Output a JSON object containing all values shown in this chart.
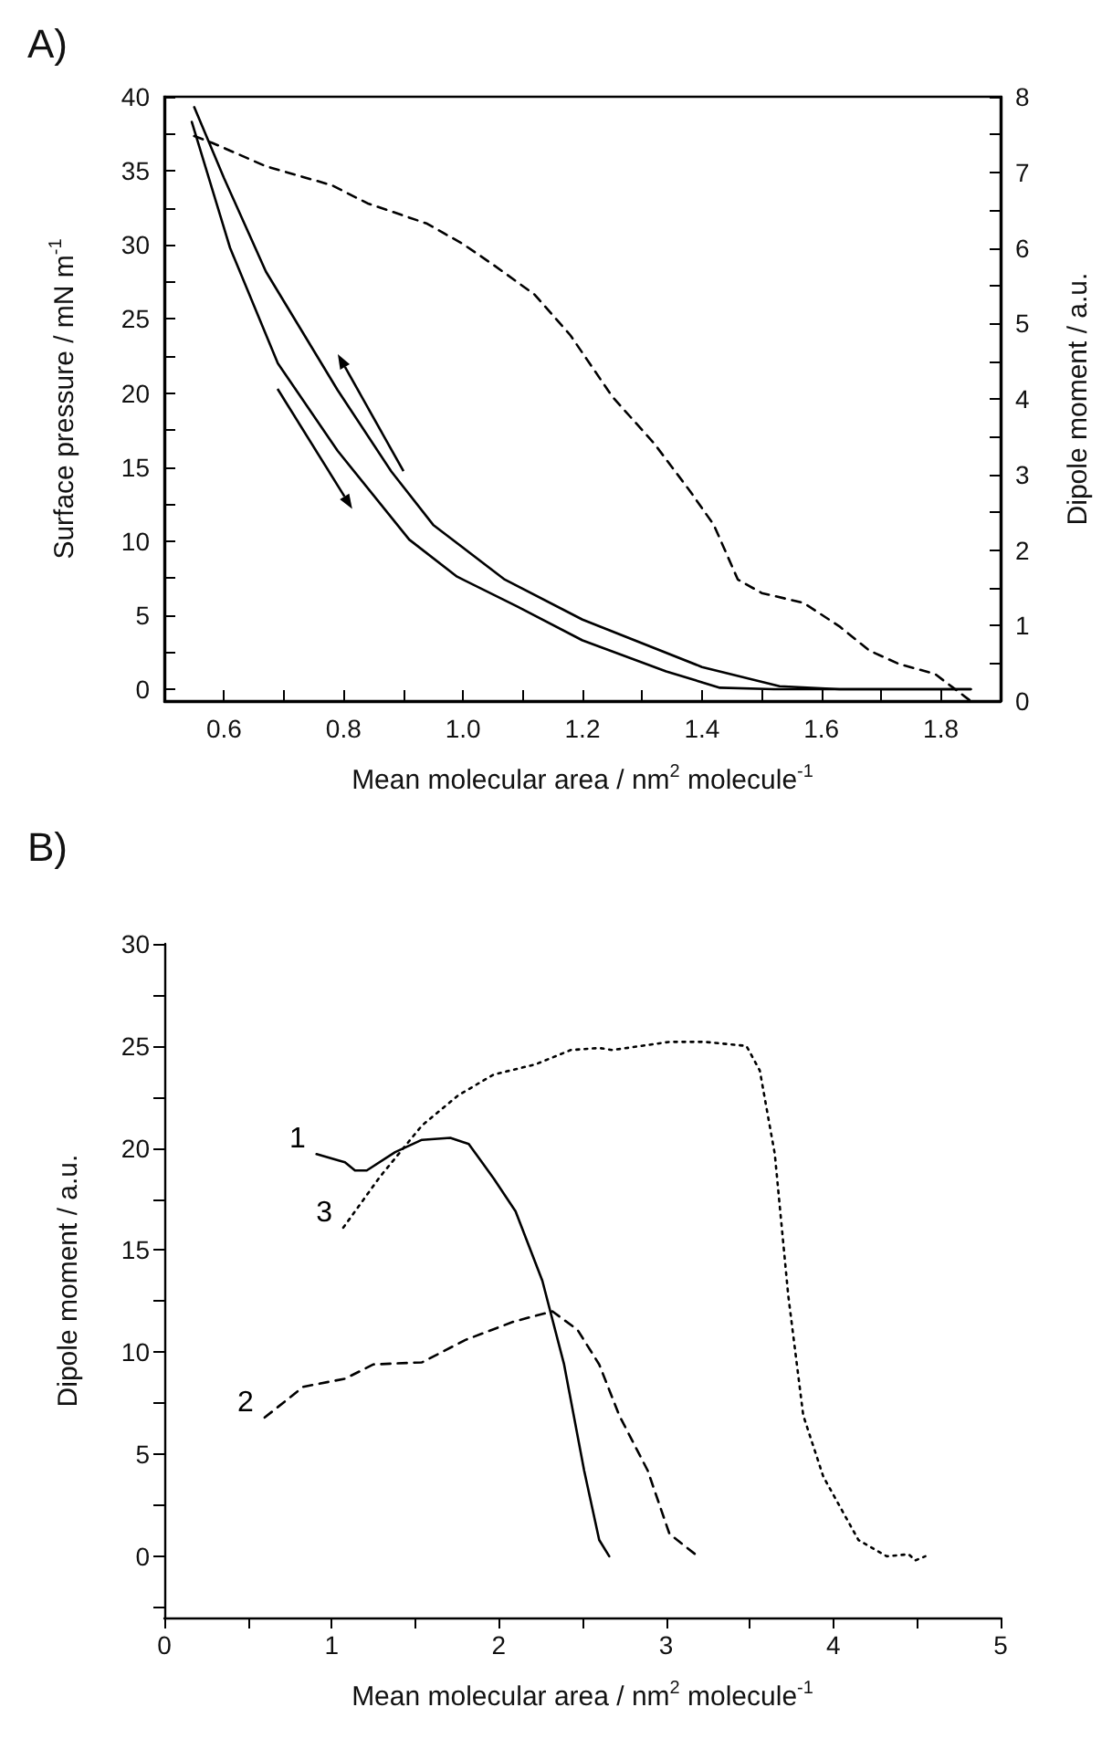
{
  "chart_data": [
    {
      "type": "line",
      "title": "A)",
      "xlabel": "Mean molecular area / nm$^{2}$ molecule$^{-1}$",
      "ylabel": "Surface pressure / mN m$^{-1}$",
      "y2label": "Dipole moment / a.u.",
      "xlim": [
        0.5,
        1.9
      ],
      "xticks": [
        {
          "value": 0.6,
          "label": "0.6"
        },
        {
          "value": 0.7,
          "label": null
        },
        {
          "value": 0.8,
          "label": "0.8"
        },
        {
          "value": 0.9,
          "label": null
        },
        {
          "value": 1.0,
          "label": "1.0"
        },
        {
          "value": 1.1,
          "label": null
        },
        {
          "value": 1.2,
          "label": "1.2"
        },
        {
          "value": 1.3,
          "label": null
        },
        {
          "value": 1.4,
          "label": "1.4"
        },
        {
          "value": 1.5,
          "label": null
        },
        {
          "value": 1.6,
          "label": "1.6"
        },
        {
          "value": 1.7,
          "label": null
        },
        {
          "value": 1.8,
          "label": "1.8"
        }
      ],
      "ylim": [
        -0.8,
        40
      ],
      "yticks": [
        0,
        {
          "value": 2.5,
          "label": null
        },
        5,
        {
          "value": 7.5,
          "label": null
        },
        10,
        {
          "value": 12.5,
          "label": null
        },
        15,
        {
          "value": 17.5,
          "label": null
        },
        20,
        {
          "value": 22.5,
          "label": null
        },
        25,
        {
          "value": 27.5,
          "label": null
        },
        30,
        {
          "value": 32.5,
          "label": null
        },
        35,
        {
          "value": 37.5,
          "label": null
        },
        40
      ],
      "y2lim": [
        0,
        8
      ],
      "y2ticks": [
        0,
        {
          "value": 0.5,
          "label": null
        },
        1,
        {
          "value": 1.5,
          "label": null
        },
        2,
        {
          "value": 2.5,
          "label": null
        },
        3,
        {
          "value": 3.5,
          "label": null
        },
        4,
        {
          "value": 4.5,
          "label": null
        },
        5,
        {
          "value": 5.5,
          "label": null
        },
        6,
        {
          "value": 6.5,
          "label": null
        },
        7,
        {
          "value": 7.5,
          "label": null
        },
        8
      ],
      "marker": "none",
      "series": [
        {
          "color": "#000000",
          "line_style": "solid",
          "x": [
            0.55,
            0.6,
            0.67,
            0.79,
            0.88,
            0.95,
            1.07,
            1.2,
            1.4,
            1.53,
            1.63,
            1.85
          ],
          "values": [
            39.3,
            34.5,
            28.2,
            20.2,
            14.7,
            11.1,
            7.4,
            4.7,
            1.5,
            0.2,
            0,
            0
          ]
        },
        {
          "color": "#000000",
          "line_style": "solid",
          "x": [
            0.546,
            0.61,
            0.69,
            0.79,
            0.91,
            0.99,
            1.09,
            1.2,
            1.34,
            1.43,
            1.52,
            1.85
          ],
          "values": [
            38.3,
            29.8,
            22,
            16.1,
            10.1,
            7.6,
            5.6,
            3.3,
            1.2,
            0.1,
            0,
            0
          ]
        },
        {
          "color": "#000000",
          "line_style": "dashed",
          "axis": "y2",
          "x": [
            0.55,
            0.58,
            0.67,
            0.78,
            0.84,
            0.94,
            1.0,
            1.05,
            1.12,
            1.18,
            1.25,
            1.32,
            1.38,
            1.42,
            1.46,
            1.5,
            1.57,
            1.63,
            1.68,
            1.73,
            1.79,
            1.82,
            1.85
          ],
          "values": [
            7.48,
            7.39,
            7.08,
            6.83,
            6.59,
            6.32,
            6.05,
            5.78,
            5.38,
            4.84,
            4.03,
            3.41,
            2.78,
            2.33,
            1.61,
            1.43,
            1.3,
            0.99,
            0.67,
            0.49,
            0.36,
            0.18,
            0
          ]
        }
      ]
    },
    {
      "type": "line",
      "title": "B)",
      "xlabel": "Mean molecular area / nm$^{2}$ molecule$^{-1}$",
      "ylabel": "Dipole moment / a.u.",
      "xlim": [
        0,
        5
      ],
      "xticks": [
        0,
        {
          "value": 0.5,
          "label": null
        },
        1,
        {
          "value": 1.5,
          "label": null
        },
        2,
        {
          "value": 2.5,
          "label": null
        },
        3,
        {
          "value": 3.5,
          "label": null
        },
        4,
        {
          "value": 4.5,
          "label": null
        },
        5
      ],
      "ylim": [
        -3,
        30
      ],
      "yticks": [
        {
          "value": -2.5,
          "label": null
        },
        0,
        {
          "value": 2.5,
          "label": null
        },
        5,
        {
          "value": 7.5,
          "label": null
        },
        10,
        {
          "value": 12.5,
          "label": null
        },
        15,
        {
          "value": 17.5,
          "label": null
        },
        20,
        {
          "value": 22.5,
          "label": null
        },
        25,
        {
          "value": 27.5,
          "label": null
        },
        30
      ],
      "marker": "none",
      "series": [
        {
          "name": "1",
          "color": "#000000",
          "line_style": "solid",
          "x": [
            0.91,
            1.08,
            1.14,
            1.21,
            1.38,
            1.54,
            1.71,
            1.82,
            1.97,
            2.1,
            2.26,
            2.39,
            2.51,
            2.6,
            2.66
          ],
          "values": [
            19.7,
            19.3,
            18.9,
            18.9,
            19.8,
            20.4,
            20.5,
            20.2,
            18.5,
            16.9,
            13.5,
            9.4,
            4.2,
            0.8,
            0
          ]
        },
        {
          "name": "2",
          "color": "#000000",
          "line_style": "dashed",
          "x": [
            0.6,
            0.83,
            1.08,
            1.25,
            1.54,
            1.8,
            2.09,
            2.32,
            2.47,
            2.6,
            2.72,
            2.89,
            3.02,
            3.19
          ],
          "values": [
            6.8,
            8.3,
            8.7,
            9.4,
            9.5,
            10.6,
            11.5,
            12.0,
            11.1,
            9.4,
            6.9,
            4.2,
            1.1,
            0
          ]
        },
        {
          "name": "3",
          "color": "#000000",
          "line_style": "dotted",
          "x": [
            1.07,
            1.29,
            1.54,
            1.76,
            1.97,
            2.22,
            2.43,
            2.6,
            2.68,
            3.02,
            3.23,
            3.48,
            3.56,
            3.65,
            3.73,
            3.82,
            3.94,
            4.15,
            4.32,
            4.45,
            4.49,
            4.55
          ],
          "values": [
            16.1,
            18.6,
            21.1,
            22.6,
            23.6,
            24.1,
            24.8,
            24.9,
            24.8,
            25.2,
            25.2,
            25.0,
            23.8,
            19.7,
            12.8,
            6.9,
            3.9,
            0.8,
            0,
            0.1,
            -0.2,
            0
          ]
        }
      ]
    }
  ]
}
